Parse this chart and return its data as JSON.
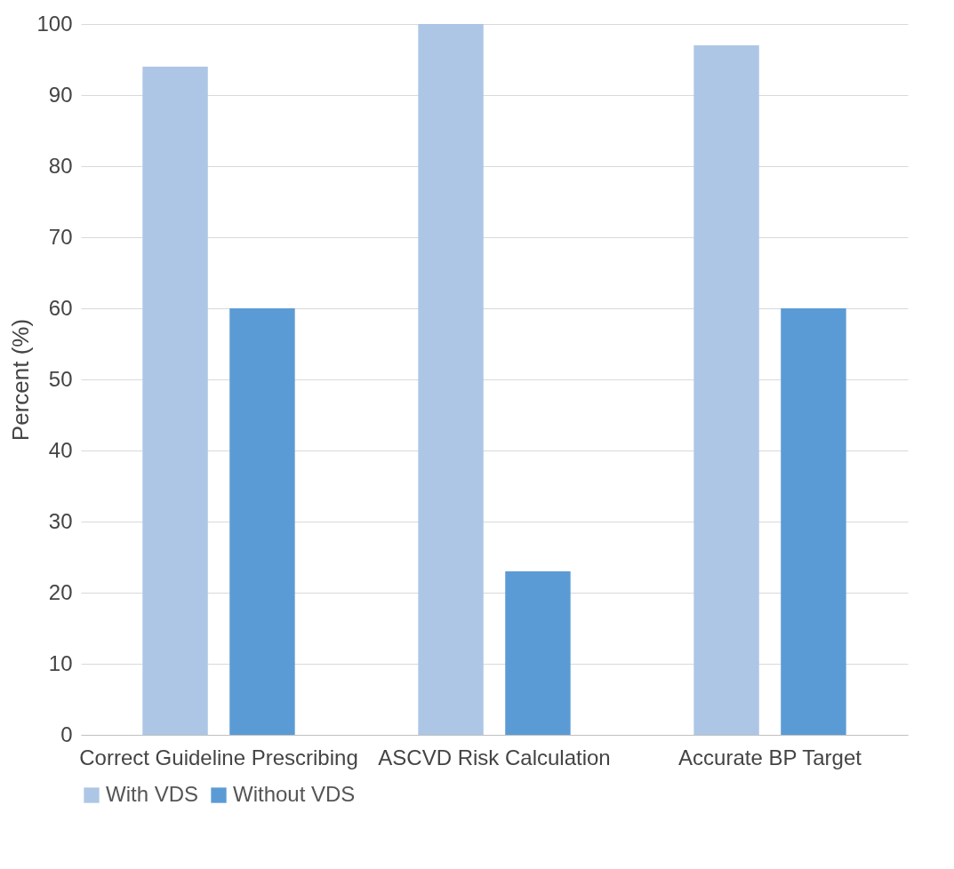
{
  "chart_data": {
    "type": "bar",
    "ylabel": "Percent (%)",
    "categories": [
      "Correct Guideline Prescribing",
      "ASCVD Risk Calculation",
      "Accurate BP Target"
    ],
    "series": [
      {
        "name": "With VDS",
        "color": "#adc6e6",
        "values": [
          94,
          100,
          97
        ]
      },
      {
        "name": "Without VDS",
        "color": "#5b9bd5",
        "values": [
          60,
          23,
          60
        ]
      }
    ],
    "ylim": [
      0,
      100
    ],
    "yticks": [
      0,
      10,
      20,
      30,
      40,
      50,
      60,
      70,
      80,
      90,
      100
    ],
    "grid": "y",
    "legend": "bottom"
  }
}
